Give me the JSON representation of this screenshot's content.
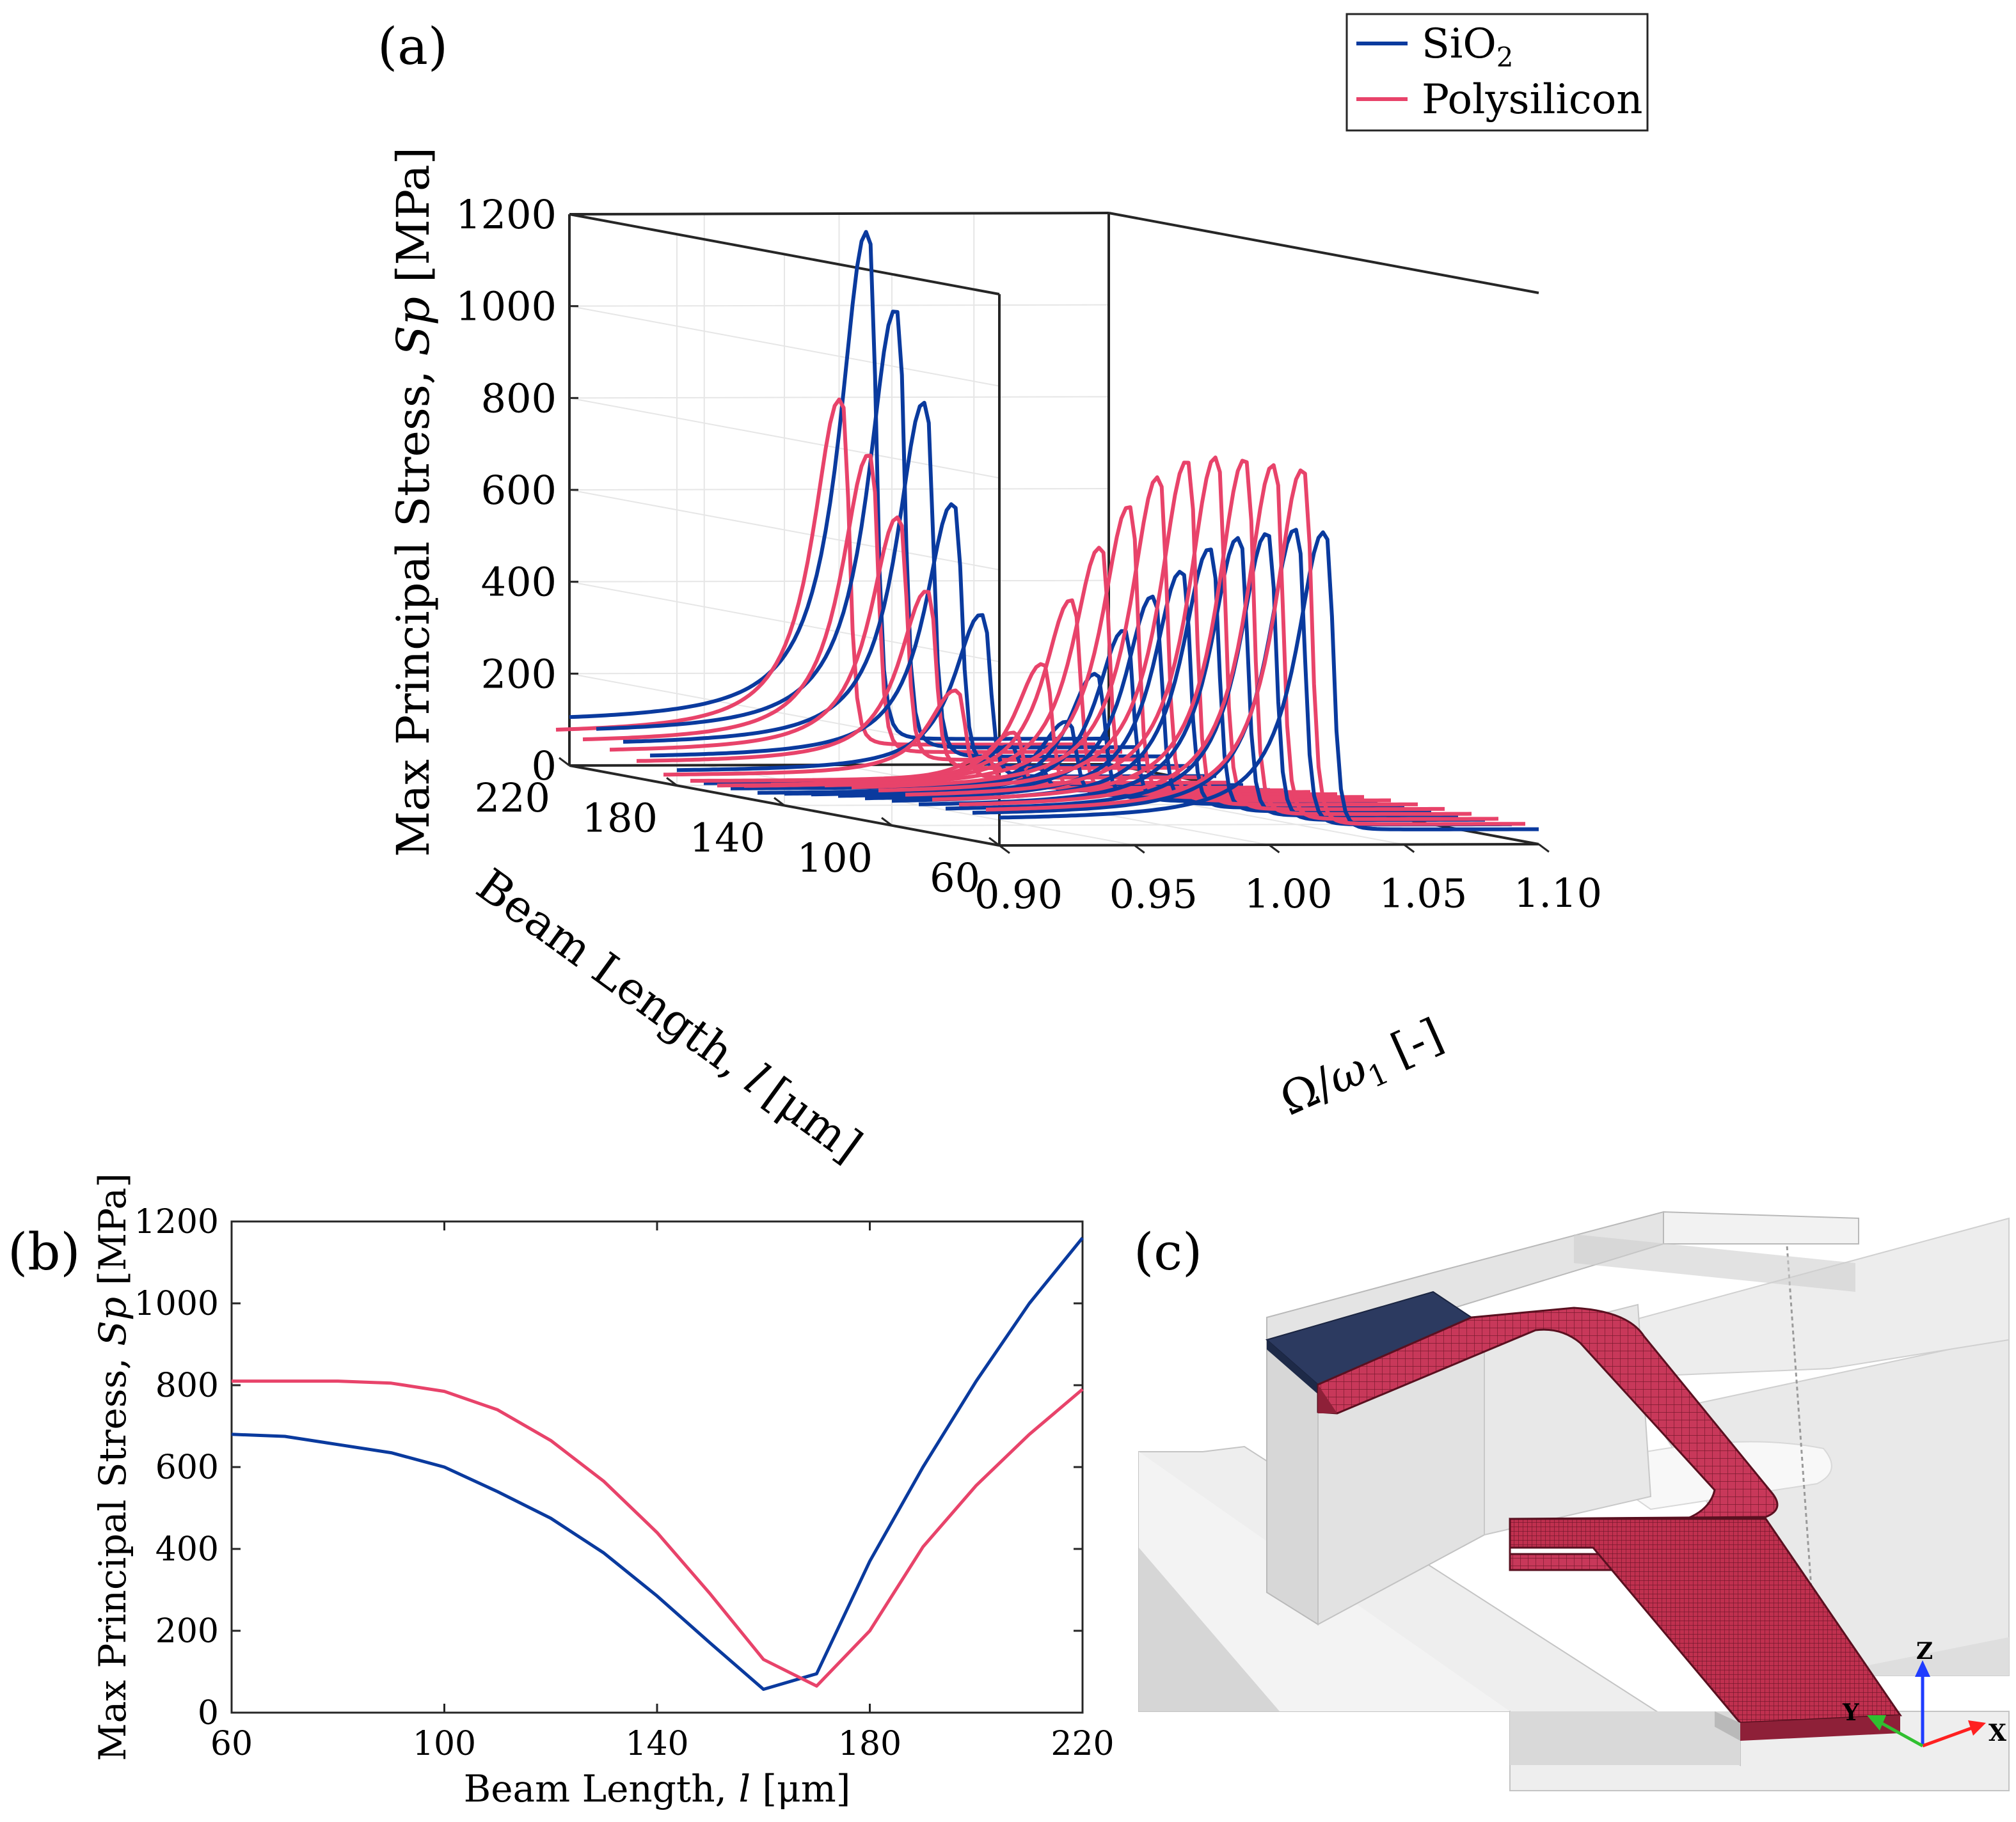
{
  "panels": {
    "a": "(a)",
    "b": "(b)",
    "c": "(c)"
  },
  "colors": {
    "sio2": "#0a3a9e",
    "polysilicon": "#e8436a",
    "axis": "#262626",
    "grid": "#e6e6e6",
    "beam": "#b5304f"
  },
  "legend": {
    "sio2": "SiO",
    "sio2_sub": "2",
    "polysilicon": "Polysilicon"
  },
  "chart_data": [
    {
      "id": "a",
      "type": "line",
      "title": "",
      "zlabel_prefix": "Max Principal Stress, ",
      "zlabel_var": "Sp",
      "zlabel_unit": "[MPa]",
      "ylabel_prefix": "Beam Length, ",
      "ylabel_var": "l",
      "ylabel_unit": "[μm]",
      "xlabel_prefix": "Ω/",
      "xlabel_var": "ω",
      "xlabel_sub": "1",
      "xlabel_suffix": " [-]",
      "xlim": [
        0.9,
        1.1
      ],
      "ylim": [
        60,
        220
      ],
      "zlim": [
        0,
        1200
      ],
      "x_ticks": [
        "0.90",
        "0.95",
        "1.00",
        "1.05",
        "1.10"
      ],
      "y_ticks": [
        "60",
        "100",
        "140",
        "180",
        "220"
      ],
      "z_ticks": [
        "0",
        "200",
        "400",
        "600",
        "800",
        "1000",
        "1200"
      ],
      "lengths": [
        60,
        70,
        80,
        90,
        100,
        110,
        120,
        130,
        140,
        150,
        160,
        170,
        180,
        190,
        200,
        210,
        220
      ],
      "series": [
        {
          "name": "SiO2",
          "peak": [
            680,
            675,
            655,
            635,
            600,
            540,
            475,
            390,
            285,
            170,
            57,
            95,
            370,
            600,
            810,
            1000,
            1160
          ]
        },
        {
          "name": "Polysilicon",
          "peak": [
            810,
            810,
            810,
            805,
            785,
            740,
            665,
            565,
            440,
            290,
            130,
            65,
            200,
            405,
            555,
            680,
            790
          ]
        }
      ]
    },
    {
      "id": "b",
      "type": "line",
      "title": "",
      "xlabel_prefix": "Beam Length, ",
      "xlabel_var": "l",
      "xlabel_unit": " [μm]",
      "ylabel_prefix": "Max Principal Stress, ",
      "ylabel_var": "Sp",
      "ylabel_unit": "[MPa]",
      "xlim": [
        60,
        220
      ],
      "ylim": [
        0,
        1200
      ],
      "x_ticks": [
        "60",
        "100",
        "140",
        "180",
        "220"
      ],
      "y_ticks": [
        "0",
        "200",
        "400",
        "600",
        "800",
        "1000",
        "1200"
      ],
      "x": [
        60,
        70,
        80,
        90,
        100,
        110,
        120,
        130,
        140,
        150,
        160,
        170,
        180,
        190,
        200,
        210,
        220
      ],
      "series": [
        {
          "name": "SiO2",
          "values": [
            680,
            675,
            655,
            635,
            600,
            540,
            475,
            390,
            285,
            170,
            57,
            95,
            370,
            600,
            810,
            1000,
            1160
          ]
        },
        {
          "name": "Polysilicon",
          "values": [
            810,
            810,
            810,
            805,
            785,
            740,
            665,
            565,
            440,
            290,
            130,
            65,
            200,
            405,
            555,
            680,
            790
          ]
        }
      ]
    }
  ],
  "triad": {
    "x": "X",
    "y": "Y",
    "z": "Z"
  }
}
